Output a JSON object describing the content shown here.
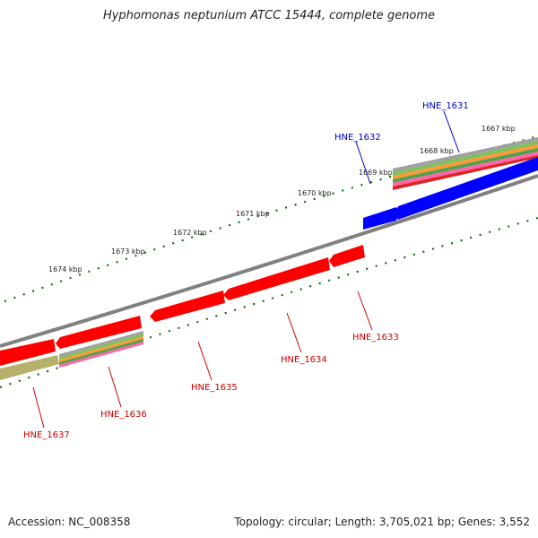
{
  "title": "Hyphomonas neptunium ATCC 15444, complete genome",
  "footer": {
    "accession": "Accession: NC_008358",
    "summary": "Topology: circular; Length: 3,705,021 bp; Genes: 3,552"
  },
  "colors": {
    "forward_gene": "#0000ff",
    "reverse_gene": "#ff0000",
    "backbone": "#808080",
    "tick": "#006400",
    "other_feature": "#b5b06a"
  },
  "kbp_labels": [
    "1667 kbp",
    "1668 kbp",
    "1669 kbp",
    "1670 kbp",
    "1671 kbp",
    "1672 kbp",
    "1673 kbp",
    "1674 kbp"
  ],
  "genes": [
    {
      "name": "HNE_1631",
      "strand": "forward",
      "color": "#0000cc"
    },
    {
      "name": "HNE_1632",
      "strand": "forward",
      "color": "#0000cc"
    },
    {
      "name": "HNE_1633",
      "strand": "reverse",
      "color": "#cc0000"
    },
    {
      "name": "HNE_1634",
      "strand": "reverse",
      "color": "#cc0000"
    },
    {
      "name": "HNE_1635",
      "strand": "reverse",
      "color": "#cc0000"
    },
    {
      "name": "HNE_1636",
      "strand": "reverse",
      "color": "#cc0000"
    },
    {
      "name": "HNE_1637",
      "strand": "reverse",
      "color": "#cc0000"
    }
  ]
}
